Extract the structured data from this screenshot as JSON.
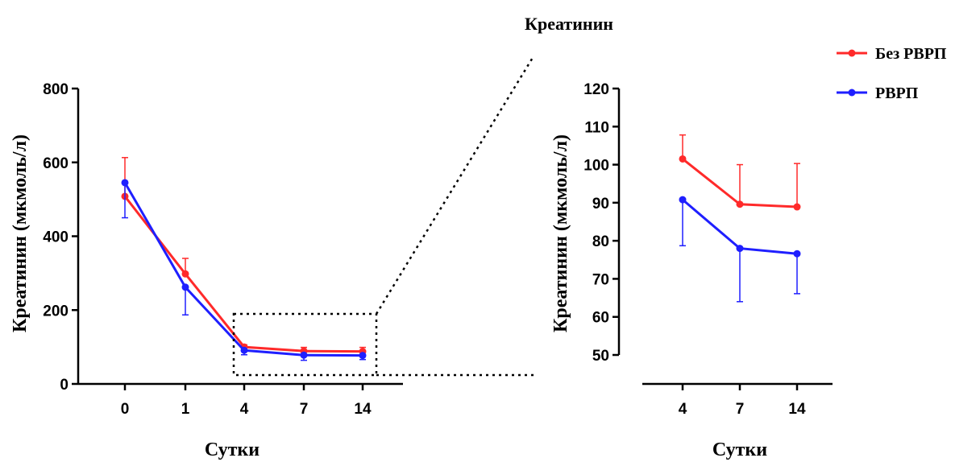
{
  "title": "Креатинин",
  "chart_data": [
    {
      "type": "line",
      "title": "",
      "xlabel": "Сутки",
      "ylabel": "Креатинин (мкмоль/л)",
      "categories": [
        "0",
        "1",
        "4",
        "7",
        "14"
      ],
      "ylim": [
        0,
        800
      ],
      "yticks": [
        "0",
        "200",
        "400",
        "600",
        "800"
      ],
      "series": [
        {
          "name": "Без РВРП",
          "color": "#ff2a2a",
          "values": [
            508,
            298,
            100,
            89,
            88
          ],
          "err_up": [
            105,
            42,
            6,
            10,
            11
          ]
        },
        {
          "name": "РВРП",
          "color": "#1f1fff",
          "values": [
            545,
            262,
            91,
            78,
            77
          ],
          "err_down": [
            95,
            75,
            12,
            14,
            11
          ]
        }
      ]
    },
    {
      "type": "line",
      "title": "",
      "xlabel": "Сутки",
      "ylabel": "Креатинин (мкмоль/л)",
      "categories": [
        "4",
        "7",
        "14"
      ],
      "ylim": [
        50,
        120
      ],
      "yticks": [
        "50",
        "60",
        "70",
        "80",
        "90",
        "100",
        "110",
        "120"
      ],
      "series": [
        {
          "name": "Без РВРП",
          "color": "#ff2a2a",
          "values": [
            101.5,
            89.6,
            88.9
          ],
          "err_up": [
            6.3,
            10.4,
            11.4
          ]
        },
        {
          "name": "РВРП",
          "color": "#1f1fff",
          "values": [
            90.8,
            78.0,
            76.6
          ],
          "err_down": [
            12.1,
            14.0,
            10.5
          ]
        }
      ]
    }
  ],
  "legend": [
    {
      "label": "Без РВРП",
      "color": "#ff2a2a"
    },
    {
      "label": "РВРП",
      "color": "#1f1fff"
    }
  ]
}
